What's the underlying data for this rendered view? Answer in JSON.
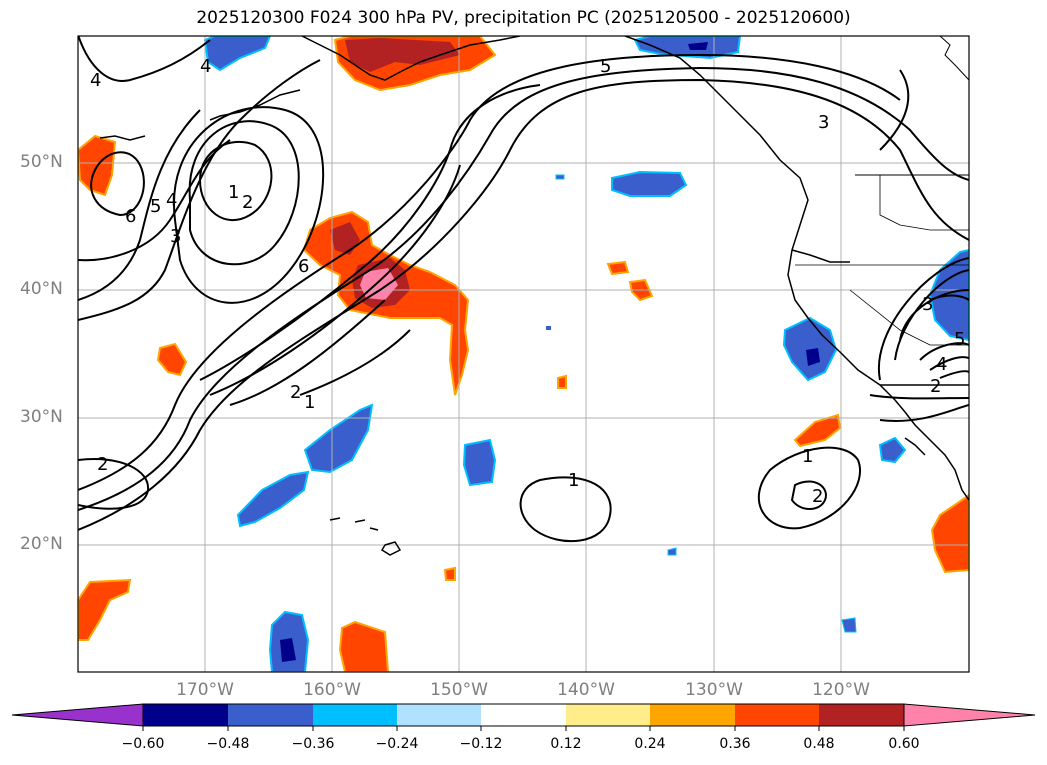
{
  "title": "2025120300 F024 300 hPa PV, precipitation PC (2025120500 - 2025120600)",
  "map": {
    "extent": {
      "lon": [
        -180,
        -110
      ],
      "lat": [
        10,
        60
      ]
    },
    "lat_labels": [
      "50°N",
      "40°N",
      "30°N",
      "20°N"
    ],
    "lon_labels": [
      "170°W",
      "160°W",
      "150°W",
      "140°W",
      "130°W",
      "120°W"
    ],
    "contour_labels": [
      "4",
      "4",
      "5",
      "3",
      "1",
      "2",
      "5",
      "4",
      "3",
      "6",
      "6",
      "2",
      "1",
      "1",
      "2",
      "1",
      "2",
      "3",
      "4",
      "5",
      "2"
    ]
  },
  "colorbar": {
    "ticks": [
      "−0.60",
      "−0.48",
      "−0.36",
      "−0.24",
      "−0.12",
      "0.12",
      "0.24",
      "0.36",
      "0.48",
      "0.60"
    ],
    "colors": [
      "#9932cc",
      "#00008b",
      "#3a5fcd",
      "#00bfff",
      "#b0e2ff",
      "#ffffff",
      "#ffec8b",
      "#ffa500",
      "#ff4500",
      "#b22222",
      "#ff82ab"
    ]
  }
}
